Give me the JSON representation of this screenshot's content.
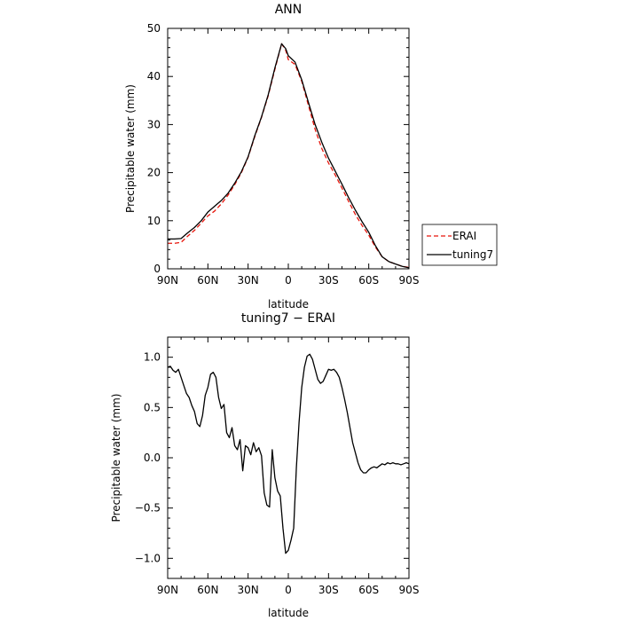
{
  "chart_data": [
    {
      "type": "line",
      "title": "ANN",
      "xlabel": "latitude",
      "ylabel": "Precipitable water (mm)",
      "xlim": [
        90,
        -90
      ],
      "ylim": [
        0,
        50
      ],
      "yticks": [
        0,
        10,
        20,
        30,
        40,
        50
      ],
      "xticks": [
        90,
        60,
        30,
        0,
        -30,
        -60,
        -90
      ],
      "xticklabels": [
        "90N",
        "60N",
        "30N",
        "0",
        "30S",
        "60S",
        "90S"
      ],
      "legend_position": "right",
      "series": [
        {
          "name": "ERAI",
          "color": "#e8150b",
          "dash": "dashed",
          "x": [
            90,
            85,
            80,
            75,
            70,
            65,
            60,
            55,
            50,
            45,
            40,
            35,
            30,
            25,
            20,
            15,
            10,
            5,
            2,
            0,
            -5,
            -10,
            -15,
            -20,
            -25,
            -30,
            -35,
            -40,
            -45,
            -50,
            -55,
            -60,
            -65,
            -70,
            -75,
            -80,
            -85,
            -90
          ],
          "y": [
            5.3,
            5.3,
            5.5,
            6.8,
            8.0,
            9.5,
            11.0,
            12.0,
            13.5,
            15.3,
            17.5,
            20.0,
            23.2,
            27.5,
            31.5,
            36.0,
            41.5,
            46.8,
            45.5,
            43.5,
            42.5,
            39.0,
            34.0,
            29.0,
            25.0,
            22.0,
            19.5,
            16.8,
            14.0,
            11.3,
            9.0,
            7.0,
            4.5,
            2.5,
            1.5,
            1.0,
            0.5,
            0.3
          ]
        },
        {
          "name": "tuning7",
          "color": "#000000",
          "dash": "solid",
          "x": [
            90,
            85,
            80,
            75,
            70,
            65,
            60,
            55,
            50,
            45,
            40,
            35,
            30,
            25,
            20,
            15,
            10,
            5,
            2,
            0,
            -5,
            -10,
            -15,
            -20,
            -25,
            -30,
            -35,
            -40,
            -45,
            -50,
            -55,
            -60,
            -65,
            -70,
            -75,
            -80,
            -85,
            -90
          ],
          "y": [
            6.2,
            6.2,
            6.3,
            7.5,
            8.6,
            10.0,
            11.8,
            13.0,
            14.2,
            15.7,
            17.8,
            20.2,
            23.3,
            27.7,
            31.6,
            36.2,
            41.8,
            46.8,
            45.8,
            44.3,
            43.0,
            39.3,
            34.6,
            30.0,
            26.3,
            23.0,
            20.3,
            17.6,
            14.8,
            12.2,
            9.8,
            7.6,
            4.8,
            2.5,
            1.5,
            1.0,
            0.5,
            0.2
          ]
        }
      ]
    },
    {
      "type": "line",
      "title": "tuning7 − ERAI",
      "xlabel": "latitude",
      "ylabel": "Precipitable water (mm)",
      "xlim": [
        90,
        -90
      ],
      "ylim": [
        -1.2,
        1.2
      ],
      "yticks": [
        -1.0,
        -0.5,
        0.0,
        0.5,
        1.0
      ],
      "yticklabels": [
        "−1.0",
        "−0.5",
        "0.0",
        "0.5",
        "1.0"
      ],
      "xticks": [
        90,
        60,
        30,
        0,
        -30,
        -60,
        -90
      ],
      "xticklabels": [
        "90N",
        "60N",
        "30N",
        "0",
        "30S",
        "60S",
        "90S"
      ],
      "series": [
        {
          "name": "",
          "color": "#000000",
          "dash": "solid",
          "x": [
            90,
            88,
            86,
            84,
            82,
            80,
            78,
            76,
            74,
            72,
            70,
            68,
            66,
            64,
            62,
            60,
            58,
            56,
            54,
            52,
            50,
            48,
            46,
            44,
            42,
            40,
            38,
            36,
            34,
            32,
            30,
            28,
            26,
            24,
            22,
            20,
            18,
            16,
            14,
            12,
            10,
            8,
            6,
            4,
            2,
            0,
            -2,
            -4,
            -6,
            -8,
            -10,
            -12,
            -14,
            -16,
            -18,
            -20,
            -22,
            -24,
            -26,
            -28,
            -30,
            -32,
            -34,
            -36,
            -38,
            -40,
            -42,
            -44,
            -46,
            -48,
            -50,
            -52,
            -54,
            -56,
            -58,
            -60,
            -62,
            -64,
            -66,
            -68,
            -70,
            -72,
            -74,
            -76,
            -78,
            -80,
            -82,
            -84,
            -86,
            -88,
            -90
          ],
          "y": [
            0.9,
            0.91,
            0.87,
            0.85,
            0.88,
            0.8,
            0.72,
            0.64,
            0.6,
            0.52,
            0.46,
            0.34,
            0.31,
            0.42,
            0.62,
            0.7,
            0.83,
            0.85,
            0.8,
            0.6,
            0.49,
            0.53,
            0.25,
            0.2,
            0.3,
            0.12,
            0.08,
            0.18,
            -0.13,
            0.12,
            0.1,
            0.03,
            0.15,
            0.06,
            0.1,
            0.02,
            -0.35,
            -0.47,
            -0.49,
            0.08,
            -0.2,
            -0.33,
            -0.38,
            -0.7,
            -0.95,
            -0.92,
            -0.82,
            -0.7,
            -0.1,
            0.35,
            0.7,
            0.9,
            1.01,
            1.03,
            0.98,
            0.88,
            0.78,
            0.74,
            0.76,
            0.82,
            0.88,
            0.87,
            0.88,
            0.85,
            0.8,
            0.7,
            0.58,
            0.45,
            0.3,
            0.15,
            0.05,
            -0.05,
            -0.12,
            -0.15,
            -0.15,
            -0.12,
            -0.1,
            -0.09,
            -0.1,
            -0.08,
            -0.06,
            -0.07,
            -0.05,
            -0.06,
            -0.05,
            -0.06,
            -0.06,
            -0.07,
            -0.06,
            -0.05,
            -0.06
          ]
        }
      ]
    }
  ]
}
